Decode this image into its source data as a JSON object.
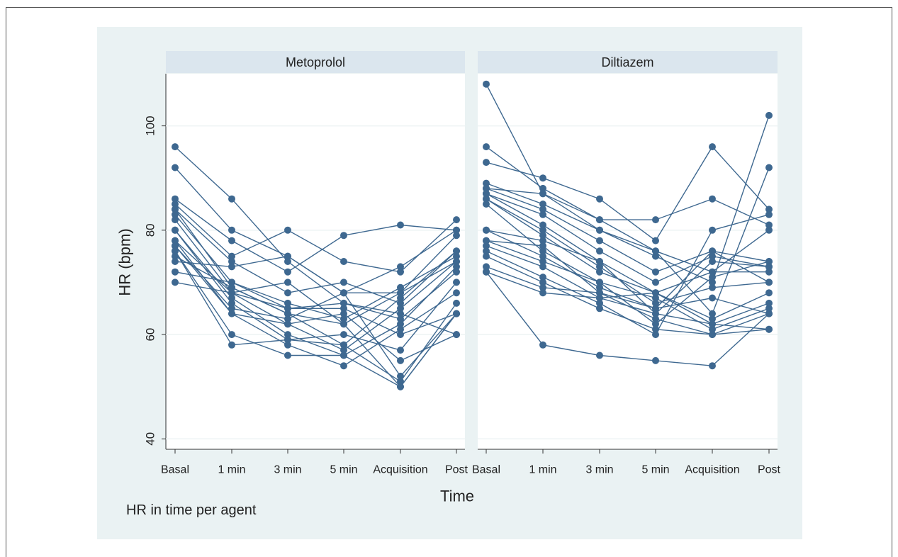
{
  "chart_data": {
    "type": "line",
    "note": "HR in time per agent",
    "xlabel": "Time",
    "ylabel": "HR (bpm)",
    "categories": [
      "Basal",
      "1 min",
      "3 min",
      "5 min",
      "Acquisition",
      "Post"
    ],
    "ylim": [
      38,
      110
    ],
    "yticks": [
      40,
      60,
      80,
      100
    ],
    "grid": true,
    "color": "#3e6890",
    "panels": [
      {
        "title": "Metoprolol",
        "series": [
          {
            "values": [
              96,
              86,
              74,
              66,
              64,
              60
            ]
          },
          {
            "values": [
              92,
              80,
              75,
              68,
              52,
              64
            ]
          },
          {
            "values": [
              86,
              78,
              72,
              79,
              81,
              80
            ]
          },
          {
            "values": [
              85,
              75,
              80,
              74,
              72,
              82
            ]
          },
          {
            "values": [
              84,
              74,
              68,
              70,
              66,
              76
            ]
          },
          {
            "values": [
              84,
              69,
              64,
              62,
              68,
              79
            ]
          },
          {
            "values": [
              83,
              70,
              66,
              63,
              69,
              75
            ]
          },
          {
            "values": [
              82,
              68,
              62,
              57,
              65,
              74
            ]
          },
          {
            "values": [
              80,
              67,
              60,
              56,
              50,
              64
            ]
          },
          {
            "values": [
              80,
              66,
              59,
              60,
              57,
              70
            ]
          },
          {
            "values": [
              78,
              68,
              65,
              66,
              63,
              72
            ]
          },
          {
            "values": [
              78,
              64,
              58,
              54,
              61,
              68
            ]
          },
          {
            "values": [
              77,
              65,
              63,
              68,
              73,
              80
            ]
          },
          {
            "values": [
              77,
              64,
              62,
              64,
              55,
              60
            ]
          },
          {
            "values": [
              76,
              60,
              56,
              56,
              62,
              73
            ]
          },
          {
            "values": [
              76,
              58,
              59,
              58,
              51,
              66
            ]
          },
          {
            "values": [
              75,
              69,
              64,
              58,
              67,
              76
            ]
          },
          {
            "values": [
              74,
              73,
              75,
              68,
              68,
              74
            ]
          },
          {
            "values": [
              72,
              70,
              65,
              65,
              60,
              64
            ]
          },
          {
            "values": [
              70,
              68,
              70,
              62,
              50,
              64
            ]
          }
        ]
      },
      {
        "title": "Diltiazem",
        "series": [
          {
            "values": [
              108,
              87,
              80,
              75,
              70,
              102
            ]
          },
          {
            "values": [
              96,
              88,
              82,
              76,
              64,
              92
            ]
          },
          {
            "values": [
              93,
              90,
              86,
              78,
              96,
              84
            ]
          },
          {
            "values": [
              89,
              85,
              80,
              76,
              72,
              80
            ]
          },
          {
            "values": [
              88,
              87,
              82,
              82,
              86,
              81
            ]
          },
          {
            "values": [
              88,
              84,
              78,
              72,
              76,
              74
            ]
          },
          {
            "values": [
              87,
              83,
              76,
              70,
              75,
              73
            ]
          },
          {
            "values": [
              87,
              81,
              74,
              68,
              72,
              72
            ]
          },
          {
            "values": [
              86,
              80,
              73,
              66,
              69,
              70
            ]
          },
          {
            "values": [
              86,
              79,
              72,
              68,
              63,
              68
            ]
          },
          {
            "values": [
              85,
              76,
              70,
              67,
              61,
              65
            ]
          },
          {
            "values": [
              80,
              78,
              74,
              64,
              62,
              66
            ]
          },
          {
            "values": [
              80,
              75,
              69,
              65,
              67,
              64
            ]
          },
          {
            "values": [
              78,
              77,
              68,
              63,
              60,
              61
            ]
          },
          {
            "values": [
              78,
              74,
              70,
              62,
              71,
              74
            ]
          },
          {
            "values": [
              77,
              73,
              67,
              64,
              74,
              73
            ]
          },
          {
            "values": [
              76,
              71,
              66,
              60,
              80,
              83
            ]
          },
          {
            "values": [
              75,
              70,
              65,
              61,
              60,
              64
            ]
          },
          {
            "values": [
              73,
              69,
              68,
              65,
              76,
              70
            ]
          },
          {
            "values": [
              72,
              68,
              67,
              68,
              62,
              61
            ]
          },
          {
            "values": [
              72,
              58,
              56,
              55,
              54,
              64
            ]
          }
        ]
      }
    ]
  }
}
